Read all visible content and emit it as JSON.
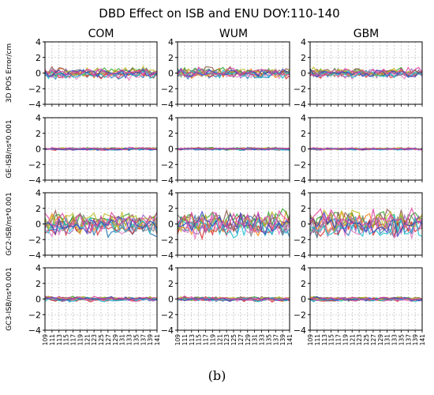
{
  "figure": {
    "title": "DBD Effect on ISB and ENU DOY:110-140",
    "caption": "(b)"
  },
  "chart_data": {
    "type": "line",
    "columns": [
      "COM",
      "WUM",
      "GBM"
    ],
    "rows": [
      {
        "ylabel": "3D POS Error/cm",
        "amplitude": [
          0.5,
          0.5,
          0.45
        ]
      },
      {
        "ylabel": "GE-ISB/ns*0.001",
        "amplitude": [
          0.12,
          0.12,
          0.1
        ]
      },
      {
        "ylabel": "GC2-ISB/ns*0.001",
        "amplitude": [
          1.0,
          1.2,
          1.2
        ]
      },
      {
        "ylabel": "GC3-ISB/ns*0.001",
        "amplitude": [
          0.22,
          0.22,
          0.2
        ]
      }
    ],
    "ylim": [
      -4,
      4
    ],
    "yticks": [
      -4,
      -2,
      0,
      2,
      4
    ],
    "xlim": [
      109,
      141
    ],
    "xticks": [
      "109",
      "111",
      "113",
      "115",
      "117",
      "119",
      "121",
      "123",
      "125",
      "127",
      "129",
      "131",
      "133",
      "135",
      "137",
      "139",
      "141"
    ],
    "grid": true,
    "series_colors": [
      "#1f77b4",
      "#ff7f0e",
      "#2ca02c",
      "#d62728",
      "#9467bd",
      "#8c564b",
      "#e377c2",
      "#7f7f7f",
      "#bcbd22",
      "#17becf",
      "#3b3ec2",
      "#e040a0"
    ]
  }
}
